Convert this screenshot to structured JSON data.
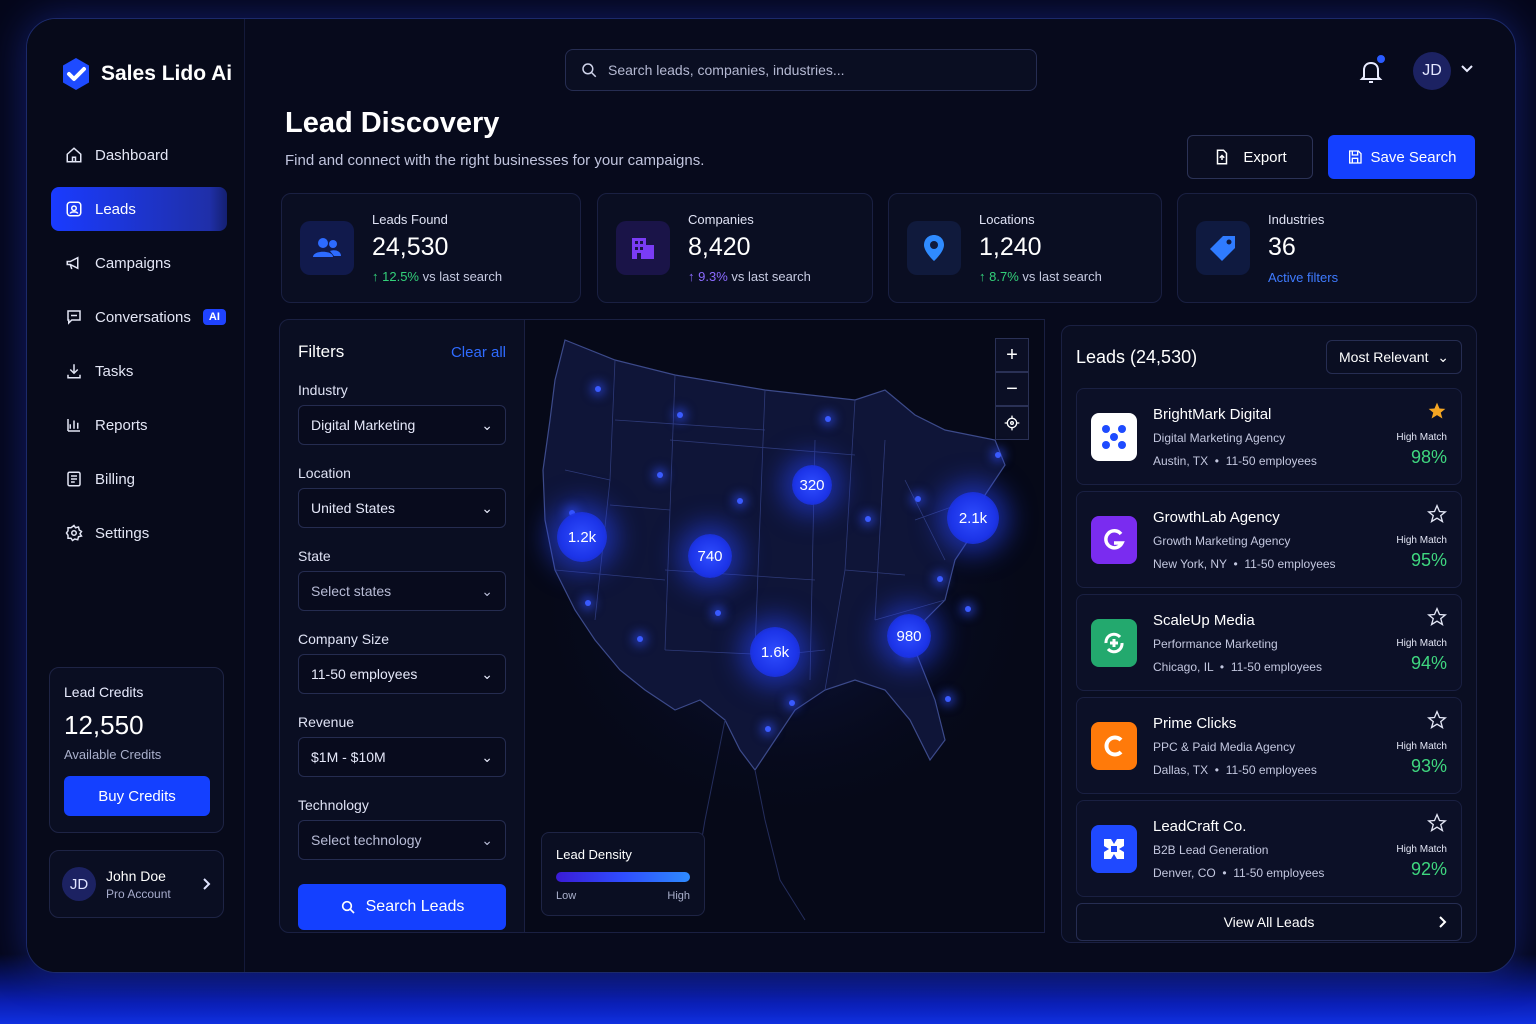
{
  "brand": {
    "name": "Sales Lido Ai",
    "accent": "#1440ff"
  },
  "sidebar": {
    "items": [
      {
        "label": "Dashboard",
        "icon": "home-icon"
      },
      {
        "label": "Leads",
        "icon": "leads-icon",
        "active": true
      },
      {
        "label": "Campaigns",
        "icon": "megaphone-icon"
      },
      {
        "label": "Conversations",
        "icon": "chat-icon",
        "badge": "AI"
      },
      {
        "label": "Tasks",
        "icon": "download-icon"
      },
      {
        "label": "Reports",
        "icon": "bar-chart-icon"
      },
      {
        "label": "Billing",
        "icon": "billing-icon"
      },
      {
        "label": "Settings",
        "icon": "gear-icon"
      }
    ],
    "credits": {
      "label": "Lead Credits",
      "value": "12,550",
      "sub": "Available Credits",
      "button": "Buy Credits"
    },
    "user": {
      "initials": "JD",
      "name": "John Doe",
      "role": "Pro Account"
    }
  },
  "header": {
    "search_placeholder": "Search leads, companies, industries...",
    "avatar_initials": "JD",
    "title": "Lead Discovery",
    "subtitle": "Find and connect with the right businesses for your campaigns.",
    "export_label": "Export",
    "save_label": "Save Search"
  },
  "stats": [
    {
      "label": "Leads Found",
      "value": "24,530",
      "delta": "12.5%",
      "delta_suffix": "vs last search",
      "icon": "users-icon"
    },
    {
      "label": "Companies",
      "value": "8,420",
      "delta": "9.3%",
      "delta_suffix": "vs last search",
      "icon": "building-icon"
    },
    {
      "label": "Locations",
      "value": "1,240",
      "delta": "8.7%",
      "delta_suffix": "vs last search",
      "icon": "location-pin-icon"
    },
    {
      "label": "Industries",
      "value": "36",
      "link": "Active filters",
      "icon": "tag-icon"
    }
  ],
  "filters": {
    "title": "Filters",
    "clear": "Clear all",
    "fields": [
      {
        "label": "Industry",
        "value": "Digital Marketing"
      },
      {
        "label": "Location",
        "value": "United States"
      },
      {
        "label": "State",
        "value": "Select states"
      },
      {
        "label": "Company Size",
        "value": "11-50 employees"
      },
      {
        "label": "Revenue",
        "value": "$1M - $10M"
      },
      {
        "label": "Technology",
        "value": "Select technology"
      }
    ],
    "search_button": "Search Leads"
  },
  "map": {
    "clusters": [
      "1.2k",
      "740",
      "320",
      "2.1k",
      "980",
      "1.6k"
    ],
    "legend": {
      "title": "Lead Density",
      "low": "Low",
      "high": "High"
    }
  },
  "leads": {
    "title": "Leads (24,530)",
    "sort": "Most Relevant",
    "items": [
      {
        "name": "BrightMark Digital",
        "type": "Digital Marketing Agency",
        "location": "Austin, TX",
        "size": "11-50 employees",
        "match_label": "High Match",
        "match": "98%",
        "starred": true,
        "logo_color": "#ffffff"
      },
      {
        "name": "GrowthLab Agency",
        "type": "Growth Marketing Agency",
        "location": "New York, NY",
        "size": "11-50 employees",
        "match_label": "High Match",
        "match": "95%",
        "starred": false,
        "logo_color": "#7a2cf0"
      },
      {
        "name": "ScaleUp Media",
        "type": "Performance Marketing",
        "location": "Chicago, IL",
        "size": "11-50 employees",
        "match_label": "High Match",
        "match": "94%",
        "starred": false,
        "logo_color": "#23a96e"
      },
      {
        "name": "Prime Clicks",
        "type": "PPC & Paid Media Agency",
        "location": "Dallas, TX",
        "size": "11-50 employees",
        "match_label": "High Match",
        "match": "93%",
        "starred": false,
        "logo_color": "#ff7a0a"
      },
      {
        "name": "LeadCraft Co.",
        "type": "B2B Lead Generation",
        "location": "Denver, CO",
        "size": "11-50 employees",
        "match_label": "High Match",
        "match": "92%",
        "starred": false,
        "logo_color": "#1f49ff"
      }
    ],
    "view_all": "View All Leads"
  }
}
